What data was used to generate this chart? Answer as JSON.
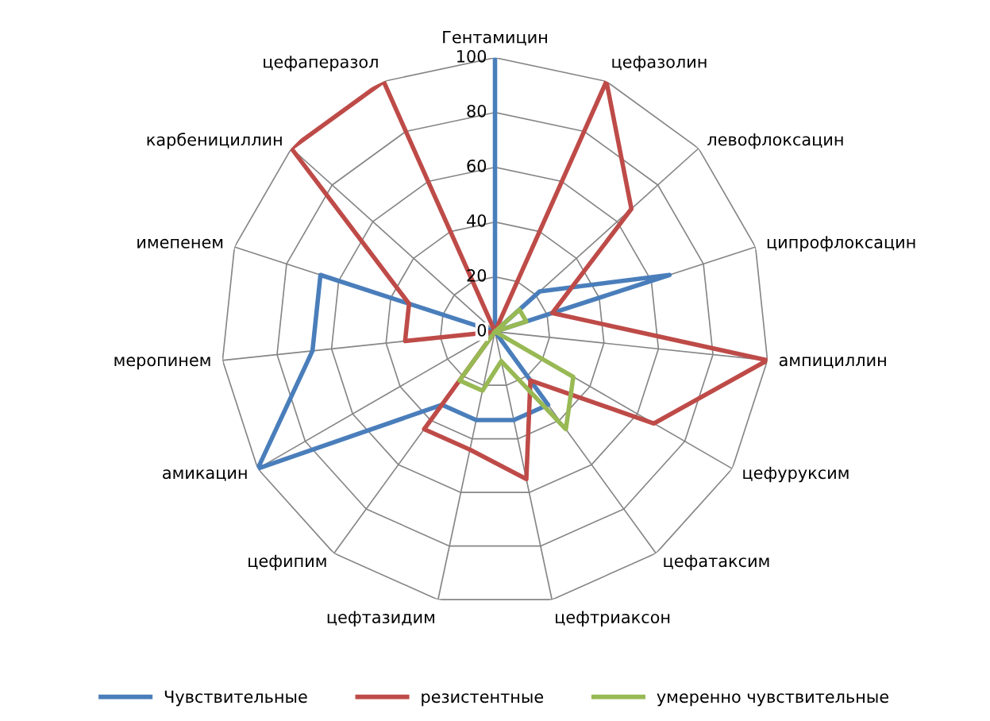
{
  "chart_data": {
    "type": "radar",
    "categories": [
      "Гентамицин",
      "цефазолин",
      "левофлоксацин",
      "ципрофлоксацин",
      "ампициллин",
      "цефуруксим",
      "цефатаксим",
      "цефтриаксон",
      "цефтазидим",
      "цефипим",
      "амикацин",
      "меропинем",
      "имепенем",
      "карбенициллин",
      "цефаперазол"
    ],
    "series": [
      {
        "name": "Чувствительные",
        "color": "#4a7ebb",
        "values": [
          100,
          0,
          22,
          67,
          0,
          0,
          33,
          33,
          33,
          33,
          100,
          67,
          67,
          0,
          0
        ]
      },
      {
        "name": "резистентные",
        "color": "#be4b48",
        "values": [
          0,
          100,
          67,
          22,
          100,
          67,
          22,
          55,
          44,
          44,
          0,
          33,
          33,
          100,
          100
        ]
      },
      {
        "name": "умеренно чувствительные",
        "color": "#98b954",
        "values": [
          0,
          0,
          12,
          12,
          0,
          33,
          44,
          11,
          22,
          22,
          0,
          0,
          0,
          0,
          0
        ]
      }
    ],
    "ylim": [
      0,
      100
    ],
    "yticks": [
      0,
      20,
      40,
      60,
      80,
      100
    ],
    "grid": true,
    "legend": "bottom",
    "line_style": "solid"
  }
}
